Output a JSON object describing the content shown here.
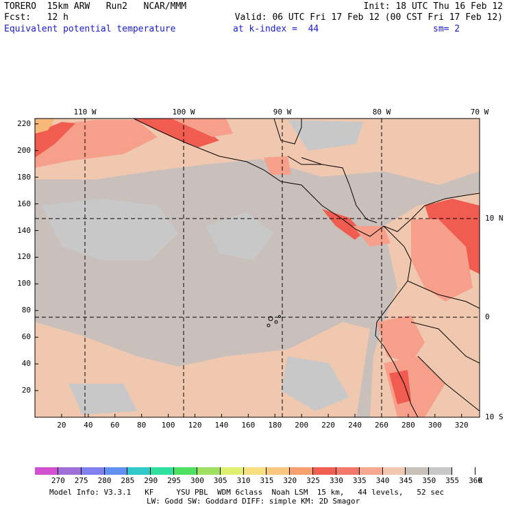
{
  "header": {
    "line1_left": "TORERO  15km ARW   Run2   NCAR/MMM",
    "line1_right": "Init: 18 UTC Thu 16 Feb 12",
    "line2_left": "Fcst:   12 h",
    "line2_right": "Valid: 06 UTC Fri 17 Feb 12 (00 CST Fri 17 Feb 12)",
    "field_name": "Equivalent potential temperature",
    "level_text": "at k-index =  44",
    "smoothing": "sm= 2"
  },
  "map": {
    "lon_labels": [
      "110 W",
      "100 W",
      "90 W",
      "80 W",
      "70 W"
    ],
    "lat_labels": [
      "10 N",
      "0",
      "10 S"
    ],
    "x_ticks": [
      "20",
      "40",
      "60",
      "80",
      "100",
      "120",
      "140",
      "160",
      "180",
      "200",
      "220",
      "240",
      "260",
      "280",
      "300",
      "320"
    ],
    "y_ticks": [
      "220",
      "200",
      "180",
      "160",
      "140",
      "120",
      "100",
      "80",
      "60",
      "40",
      "20"
    ],
    "colors": {
      "background_grey": "#c9c0bb",
      "light_grey": "#c8c8c8",
      "tan": "#f0c8b0",
      "salmon": "#f6a08c",
      "red": "#f05c50",
      "orange": "#f7b97a",
      "coast": "#000000"
    }
  },
  "colorbar": {
    "colors": [
      "#d050d0",
      "#a070d8",
      "#8080f0",
      "#6090f0",
      "#30c8c8",
      "#30e0a0",
      "#50e060",
      "#a0e060",
      "#e0f070",
      "#f8e080",
      "#f8c880",
      "#f8a070",
      "#f06050",
      "#f47868",
      "#f8a890",
      "#f2c8b0",
      "#c8c0bb",
      "#c8c8c8",
      "#ffffff"
    ],
    "labels": [
      "270",
      "275",
      "280",
      "285",
      "290",
      "295",
      "300",
      "305",
      "310",
      "315",
      "320",
      "325",
      "330",
      "335",
      "340",
      "345",
      "350",
      "355",
      "360"
    ],
    "unit": "K"
  },
  "footer": {
    "line1": "Model Info: V3.3.1   KF     YSU PBL  WDM 6class  Noah LSM  15 km,   44 levels,   52 sec",
    "line2": "LW: Godd SW: Goddard DIFF: simple KM: 2D Smagor"
  }
}
